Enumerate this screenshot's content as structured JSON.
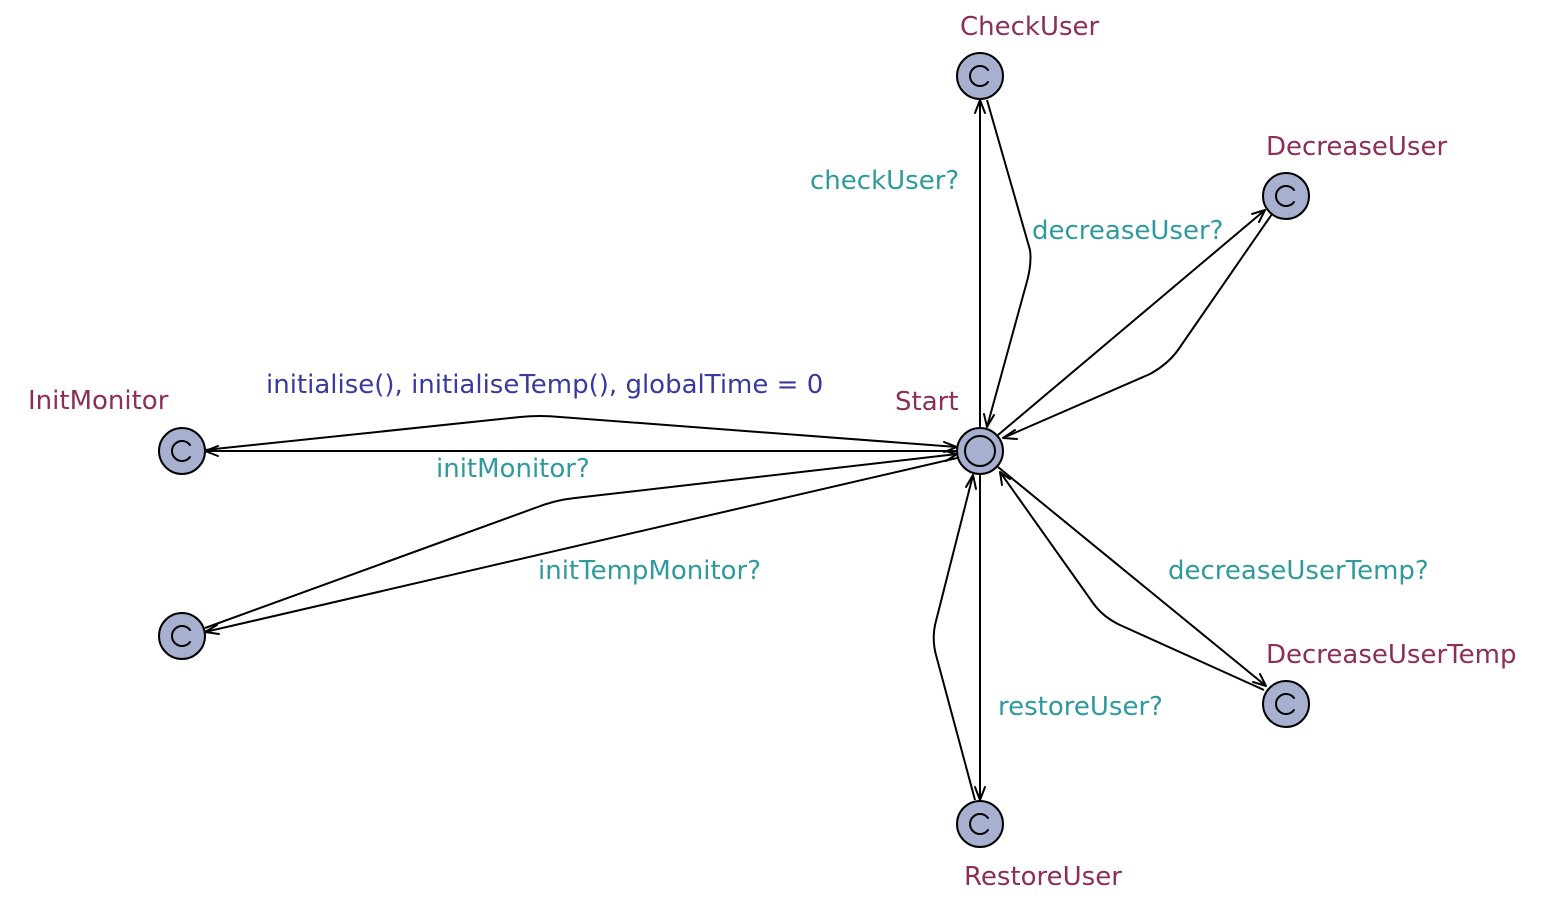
{
  "locations": {
    "start": {
      "name": "Start",
      "initial": true,
      "committed": false
    },
    "check_user": {
      "name": "CheckUser",
      "committed": true
    },
    "decrease_user": {
      "name": "DecreaseUser",
      "committed": true
    },
    "init_monitor": {
      "name": "InitMonitor",
      "committed": true
    },
    "unnamed": {
      "committed": true
    },
    "decrease_user_temp": {
      "name": "DecreaseUserTemp",
      "committed": true
    },
    "restore_user": {
      "name": "RestoreUser",
      "committed": true
    }
  },
  "edges": {
    "check_user_sync": "checkUser?",
    "decrease_user_sync": "decreaseUser?",
    "init_update": "initialise(), initialiseTemp(), globalTime = 0",
    "init_monitor_sync": "initMonitor?",
    "init_temp_monitor_sync": "initTempMonitor?",
    "decrease_user_temp_sync": "decreaseUserTemp?",
    "restore_user_sync": "restoreUser?"
  },
  "colors": {
    "location_fill": "#a7b0cf",
    "location_name": "#8b2e5c",
    "sync_label": "#2f9a9e",
    "update_label": "#3a3a9e"
  }
}
